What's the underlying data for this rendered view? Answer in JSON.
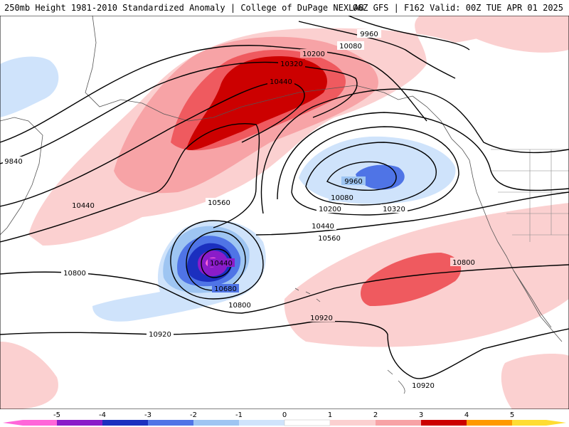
{
  "header": {
    "title_left": "250mb Height 1981-2010 Standardized Anomaly | College of DuPage NEXLAB",
    "title_right": "06Z GFS | F162 Valid: 00Z TUE APR 01 2025"
  },
  "colors": {
    "pos1": "#fbd0d0",
    "pos2": "#f7a3a6",
    "pos3": "#ef5a5f",
    "pos4": "#cc0000",
    "pos5": "#ff9900",
    "pos6": "#ffdd33",
    "neg1": "#cfe3fb",
    "neg2": "#9ec5f2",
    "neg3": "#4f74e6",
    "neg4": "#1b2fbf",
    "neg5": "#8a1cc9",
    "neg6": "#ff66d9"
  },
  "contour_labels": [
    "9960",
    "10080",
    "10200",
    "10320",
    "10440",
    "9840",
    "9960",
    "10080",
    "10200",
    "10320",
    "10440",
    "10560",
    "10440",
    "10560",
    "10440",
    "10680",
    "10800",
    "10800",
    "10800",
    "10920",
    "10920",
    "10920"
  ],
  "colorbar": {
    "ticks": [
      "-5",
      "-4",
      "-3",
      "-2",
      "-1",
      "0",
      "1",
      "2",
      "3",
      "4",
      "5"
    ]
  }
}
